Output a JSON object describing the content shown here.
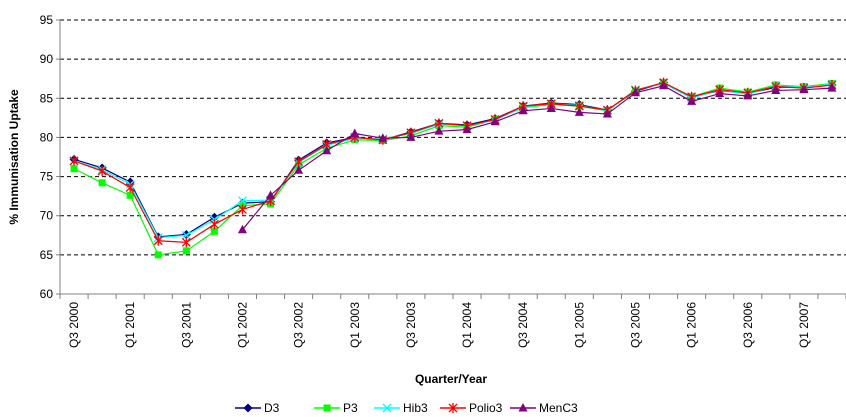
{
  "chart_data": {
    "type": "line",
    "title": "",
    "xlabel": "Quarter/Year",
    "ylabel": "% Immunisation Uptake",
    "ylim": [
      60,
      95
    ],
    "yticks": [
      60,
      65,
      70,
      75,
      80,
      85,
      90,
      95
    ],
    "grid": "horizontal dashed",
    "legend_position": "bottom",
    "x": [
      "Q3 2000",
      "Q4 2000",
      "Q1 2001",
      "Q2 2001",
      "Q3 2001",
      "Q4 2001",
      "Q1 2002",
      "Q2 2002",
      "Q3 2002",
      "Q4 2002",
      "Q1 2003",
      "Q2 2003",
      "Q3 2003",
      "Q4 2003",
      "Q1 2004",
      "Q2 2004",
      "Q3 2004",
      "Q4 2004",
      "Q1 2005",
      "Q2 2005",
      "Q3 2005",
      "Q4 2005",
      "Q1 2006",
      "Q2 2006",
      "Q3 2006",
      "Q4 2006",
      "Q1 2007",
      "Q2 2007"
    ],
    "x_tick_labels": [
      "Q3 2000",
      "",
      "Q1 2001",
      "",
      "Q3 2001",
      "",
      "Q1 2002",
      "",
      "Q3 2002",
      "",
      "Q1 2003",
      "",
      "Q3 2003",
      "",
      "Q1 2004",
      "",
      "Q3 2004",
      "",
      "Q1 2005",
      "",
      "Q3 2005",
      "",
      "Q1 2006",
      "",
      "Q3 2006",
      "",
      "Q1 2007",
      ""
    ],
    "series": [
      {
        "name": "D3",
        "color": "#000080",
        "marker": "diamond",
        "values": [
          77.2,
          76.1,
          74.3,
          67.3,
          67.6,
          69.8,
          71.6,
          71.8,
          77.1,
          79.3,
          80.0,
          79.7,
          80.7,
          81.8,
          81.6,
          82.4,
          84.0,
          84.4,
          84.2,
          83.5,
          85.9,
          87.0,
          85.1,
          86.0,
          85.6,
          86.4,
          86.4,
          86.7
        ]
      },
      {
        "name": "P3",
        "color": "#00ff00",
        "marker": "square",
        "values": [
          76.0,
          74.2,
          72.6,
          65.0,
          65.5,
          68.0,
          71.3,
          71.5,
          76.5,
          78.6,
          79.7,
          79.6,
          80.2,
          81.5,
          81.3,
          82.3,
          83.8,
          84.2,
          84.0,
          83.4,
          86.0,
          87.0,
          85.2,
          86.3,
          85.8,
          86.7,
          86.5,
          86.9
        ]
      },
      {
        "name": "Hib3",
        "color": "#00ffff",
        "marker": "x",
        "values": [
          77.0,
          75.9,
          74.0,
          67.2,
          67.5,
          69.5,
          71.9,
          72.0,
          76.8,
          79.0,
          79.9,
          79.8,
          80.5,
          81.7,
          81.5,
          82.2,
          83.9,
          84.3,
          84.1,
          83.4,
          86.1,
          86.9,
          85.0,
          86.1,
          85.5,
          86.6,
          86.4,
          86.8
        ]
      },
      {
        "name": "Polio3",
        "color": "#ff0000",
        "marker": "asterisk",
        "values": [
          77.0,
          75.7,
          73.6,
          66.8,
          66.6,
          68.9,
          70.8,
          71.9,
          76.9,
          79.1,
          80.0,
          79.7,
          80.6,
          81.8,
          81.5,
          82.3,
          84.0,
          84.3,
          84.0,
          83.5,
          86.0,
          87.0,
          85.2,
          86.1,
          85.7,
          86.5,
          86.3,
          86.7
        ]
      },
      {
        "name": "MenC3",
        "color": "#800080",
        "marker": "triangle",
        "values": [
          null,
          null,
          null,
          null,
          null,
          null,
          68.2,
          72.6,
          75.8,
          78.3,
          80.5,
          79.9,
          80.0,
          80.8,
          81.0,
          82.0,
          83.4,
          83.7,
          83.2,
          83.0,
          85.7,
          86.6,
          84.6,
          85.6,
          85.3,
          86.0,
          86.1,
          86.3
        ]
      }
    ]
  }
}
